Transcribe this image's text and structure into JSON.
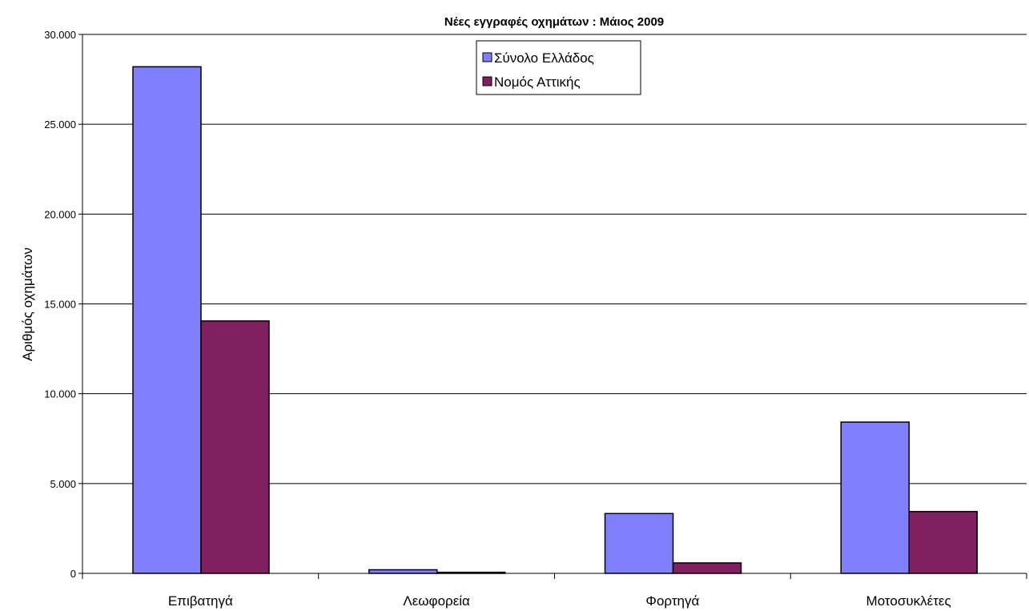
{
  "chart_data": {
    "type": "bar",
    "title": "Νέες εγγραφές οχημάτων : Μάιος 2009",
    "xlabel": "",
    "ylabel": "Αριθμός οχημάτων",
    "categories": [
      "Επιβατηγά",
      "Λεωφορεία",
      "Φορτηγά",
      "Μοτοσυκλέτες"
    ],
    "series": [
      {
        "name": "Σύνολο Ελλάδος",
        "color": "#8080ff",
        "values": [
          28200,
          200,
          3330,
          8420
        ]
      },
      {
        "name": "Νομός Αττικής",
        "color": "#802060",
        "values": [
          14050,
          60,
          580,
          3440
        ]
      }
    ],
    "ylim": [
      0,
      30000
    ],
    "yticks": [
      0,
      5000,
      10000,
      15000,
      20000,
      25000,
      30000
    ],
    "ytick_labels": [
      "0",
      "5.000",
      "10.000",
      "15.000",
      "20.000",
      "25.000",
      "30.000"
    ],
    "grid": true,
    "legend_position": "top-center"
  }
}
